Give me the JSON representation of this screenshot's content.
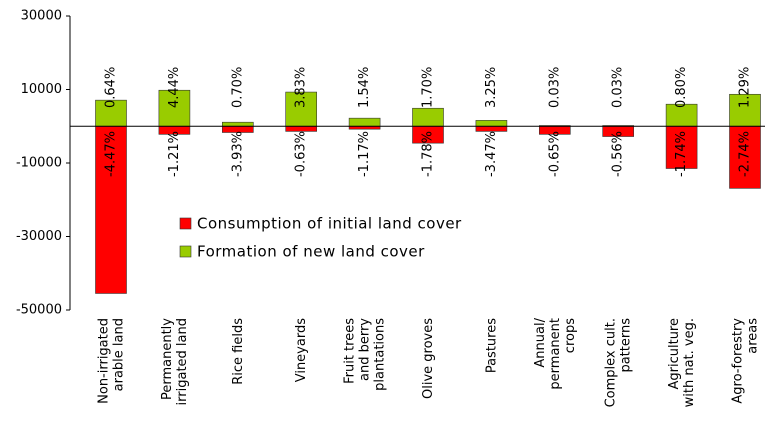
{
  "chart_data": {
    "type": "bar",
    "categories": [
      [
        "Non-irrigated",
        "arable land"
      ],
      [
        "Permanently",
        "irrigated land"
      ],
      [
        "Rice fields"
      ],
      [
        "Vineyards"
      ],
      [
        "Fruit trees",
        "and berry",
        "plantations"
      ],
      [
        "Olive groves"
      ],
      [
        "Pastures"
      ],
      [
        "Annual/",
        "permanent",
        "crops"
      ],
      [
        "Complex cult.",
        "patterns"
      ],
      [
        "Agriculture",
        "with nat. veg."
      ],
      [
        "Agro-forestry",
        "areas"
      ]
    ],
    "series": [
      {
        "name": "Consumption of initial land cover",
        "color": "#ff0000",
        "values": [
          -45500,
          -2200,
          -1700,
          -1400,
          -800,
          -4600,
          -1400,
          -2200,
          -2800,
          -11500,
          -16900
        ],
        "labels": [
          "-4.47%",
          "-1.21%",
          "-3.93%",
          "-0.63%",
          "-1.17%",
          "-1.78%",
          "-3.47%",
          "-0.65%",
          "-0.56%",
          "-1.74%",
          "-2.74%"
        ]
      },
      {
        "name": "Formation of new land cover",
        "color": "#99cc00",
        "values": [
          7100,
          9800,
          1100,
          9300,
          2200,
          4900,
          1600,
          200,
          200,
          6000,
          8700
        ],
        "labels": [
          "0.64%",
          "4.44%",
          "0.70%",
          "3.83%",
          "1.54%",
          "1.70%",
          "3.25%",
          "0.03%",
          "0.03%",
          "0.80%",
          "1.29%"
        ]
      }
    ],
    "ylim": [
      -50000,
      30000
    ],
    "yticks": [
      -50000,
      -30000,
      -10000,
      10000,
      30000
    ]
  }
}
